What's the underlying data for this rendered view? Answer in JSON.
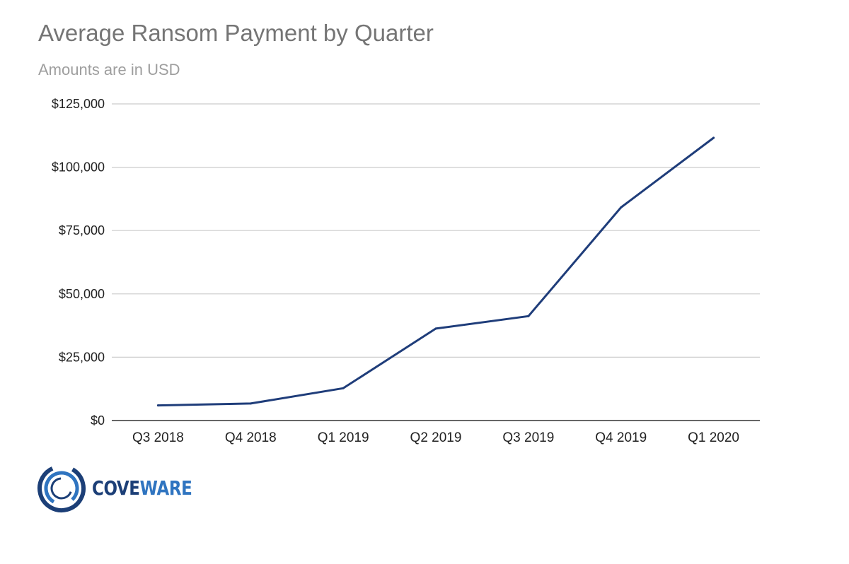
{
  "chart_data": {
    "type": "line",
    "title": "Average Ransom Payment by Quarter",
    "subtitle": "Amounts are in USD",
    "categories": [
      "Q3 2018",
      "Q4 2018",
      "Q1 2019",
      "Q2 2019",
      "Q3 2019",
      "Q4 2019",
      "Q1 2020"
    ],
    "series": [
      {
        "values": [
          5973,
          6733,
          12762,
          36295,
          41198,
          84116,
          111605
        ],
        "color": "#1f3d7a"
      }
    ],
    "ylim": [
      0,
      125000
    ],
    "yticks": [
      0,
      25000,
      50000,
      75000,
      100000,
      125000
    ],
    "ytick_labels": [
      "$0",
      "$25,000",
      "$50,000",
      "$75,000",
      "$100,000",
      "$125,000"
    ],
    "xlabel": "",
    "ylabel": "",
    "grid": true,
    "gridline_color": "#cccccc",
    "axis_color": "#333333"
  },
  "logo": {
    "text_part_1": "COVE",
    "text_part_2": "WARE",
    "color_dark": "#1c3f77",
    "color_light": "#2f74c0"
  }
}
